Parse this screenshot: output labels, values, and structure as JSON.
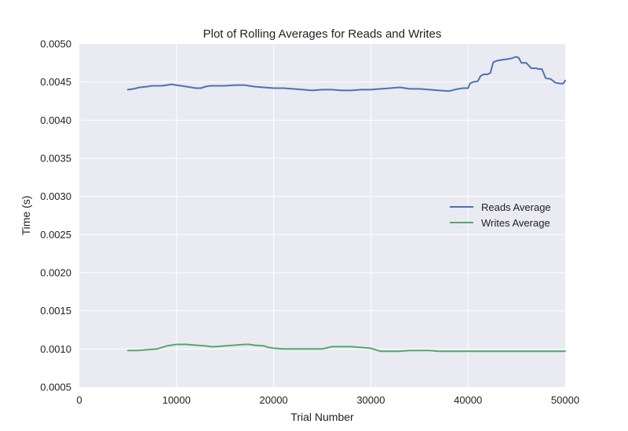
{
  "chart_data": {
    "type": "line",
    "title": "Plot of Rolling Averages for Reads and Writes",
    "xlabel": "Trial Number",
    "ylabel": "Time (s)",
    "xlim": [
      0,
      50000
    ],
    "ylim": [
      0.0005,
      0.005
    ],
    "xticks": [
      "0",
      "10000",
      "20000",
      "30000",
      "40000",
      "50000"
    ],
    "yticks": [
      "0.0005",
      "0.0010",
      "0.0015",
      "0.0020",
      "0.0025",
      "0.0030",
      "0.0035",
      "0.0040",
      "0.0045",
      "0.0050"
    ],
    "grid": true,
    "legend_position": "right",
    "background": "#eaeaf2",
    "series": [
      {
        "name": "Reads Average",
        "color": "#4c72b0",
        "x": [
          5000,
          5600,
          6200,
          7000,
          7500,
          8500,
          9000,
          9500,
          10000,
          10500,
          11000,
          11500,
          12000,
          12500,
          13000,
          13500,
          14000,
          15000,
          16000,
          16500,
          17000,
          17500,
          18000,
          19000,
          20000,
          21000,
          22000,
          23000,
          24000,
          25000,
          26000,
          27000,
          28000,
          29000,
          30000,
          31000,
          32000,
          33000,
          34000,
          35000,
          36000,
          37000,
          38000,
          39000,
          39500,
          40000,
          40200,
          40500,
          41000,
          41300,
          41600,
          42000,
          42300,
          42600,
          43000,
          43500,
          44000,
          44500,
          44900,
          45200,
          45500,
          46000,
          46500,
          47000,
          47300,
          47600,
          48000,
          48500,
          49000,
          49500,
          49800,
          50000
        ],
        "y": [
          0.0044,
          0.00441,
          0.00443,
          0.00444,
          0.00445,
          0.00445,
          0.00446,
          0.00447,
          0.00446,
          0.00445,
          0.00444,
          0.00443,
          0.00442,
          0.00442,
          0.00444,
          0.00445,
          0.00445,
          0.00445,
          0.00446,
          0.00446,
          0.00446,
          0.00445,
          0.00444,
          0.00443,
          0.00442,
          0.00442,
          0.00441,
          0.0044,
          0.00439,
          0.0044,
          0.0044,
          0.00439,
          0.00439,
          0.0044,
          0.0044,
          0.00441,
          0.00442,
          0.00443,
          0.00441,
          0.00441,
          0.0044,
          0.00439,
          0.00438,
          0.00441,
          0.00442,
          0.00442,
          0.00448,
          0.0045,
          0.00451,
          0.00458,
          0.0046,
          0.0046,
          0.00462,
          0.00476,
          0.00478,
          0.00479,
          0.0048,
          0.00481,
          0.00483,
          0.00482,
          0.00475,
          0.00475,
          0.00468,
          0.00468,
          0.00467,
          0.00467,
          0.00455,
          0.00454,
          0.00449,
          0.00448,
          0.00448,
          0.00452
        ]
      },
      {
        "name": "Writes Average",
        "color": "#55a868",
        "x": [
          5000,
          6000,
          7000,
          8000,
          8500,
          9000,
          9500,
          10000,
          11000,
          12000,
          13000,
          13500,
          14000,
          15000,
          16000,
          17000,
          17500,
          18000,
          19000,
          19500,
          20000,
          21000,
          22000,
          23000,
          24000,
          25000,
          26000,
          27000,
          28000,
          29000,
          30000,
          30500,
          31000,
          32000,
          33000,
          34000,
          35000,
          36000,
          37000,
          38000,
          39000,
          40000,
          41000,
          42000,
          43000,
          44000,
          45000,
          46000,
          47000,
          48000,
          49000,
          50000
        ],
        "y": [
          0.00098,
          0.00098,
          0.00099,
          0.001,
          0.00102,
          0.00104,
          0.00105,
          0.00106,
          0.00106,
          0.00105,
          0.00104,
          0.00103,
          0.00103,
          0.00104,
          0.00105,
          0.00106,
          0.00106,
          0.00105,
          0.00104,
          0.00102,
          0.00101,
          0.001,
          0.001,
          0.001,
          0.001,
          0.001,
          0.00103,
          0.00103,
          0.00103,
          0.00102,
          0.00101,
          0.00099,
          0.00097,
          0.00097,
          0.00097,
          0.00098,
          0.00098,
          0.00098,
          0.00097,
          0.00097,
          0.00097,
          0.00097,
          0.00097,
          0.00097,
          0.00097,
          0.00097,
          0.00097,
          0.00097,
          0.00097,
          0.00097,
          0.00097,
          0.00097
        ]
      }
    ]
  }
}
